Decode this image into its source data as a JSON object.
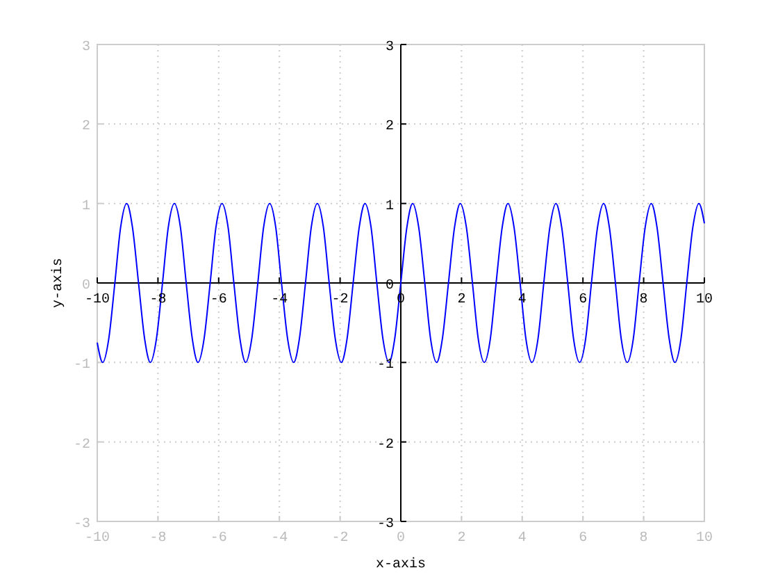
{
  "chart_data": {
    "type": "line",
    "xlabel": "x-axis",
    "ylabel": "y-axis",
    "xlim": [
      -10,
      10
    ],
    "ylim": [
      -3,
      3
    ],
    "xticks": [
      -10,
      -8,
      -6,
      -4,
      -2,
      0,
      2,
      4,
      6,
      8,
      10
    ],
    "yticks": [
      -3,
      -2,
      -1,
      0,
      1,
      2,
      3
    ],
    "x2lim": [
      -10,
      10
    ],
    "x2ticks": [
      -10,
      -8,
      -6,
      -4,
      -2,
      0,
      2,
      4,
      6,
      8,
      10
    ],
    "y2lim": [
      -3,
      3
    ],
    "y2ticks": [
      -3,
      -2,
      -1,
      0,
      1,
      2,
      3
    ],
    "grid": true,
    "line_style": "solid",
    "marker": "none",
    "x": [
      -10,
      -9.82,
      -9.62,
      -9.42,
      -9.23,
      -9.03,
      -8.84,
      -8.64,
      -8.44,
      -8.25,
      -8.05,
      -7.85,
      -7.66,
      -7.46,
      -7.26,
      -7.07,
      -6.87,
      -6.68,
      -6.48,
      -6.28,
      -6.09,
      -5.89,
      -5.69,
      -5.5,
      -5.3,
      -5.11,
      -4.91,
      -4.71,
      -4.52,
      -4.32,
      -4.12,
      -3.93,
      -3.73,
      -3.53,
      -3.34,
      -3.14,
      -2.95,
      -2.75,
      -2.55,
      -2.36,
      -2.16,
      -1.96,
      -1.77,
      -1.57,
      -1.37,
      -1.18,
      -0.98,
      -0.79,
      -0.59,
      -0.39,
      -0.2,
      0,
      0.2,
      0.39,
      0.59,
      0.79,
      0.98,
      1.18,
      1.37,
      1.57,
      1.77,
      1.96,
      2.16,
      2.36,
      2.55,
      2.75,
      2.95,
      3.14,
      3.34,
      3.53,
      3.73,
      3.93,
      4.12,
      4.32,
      4.52,
      4.71,
      4.91,
      5.11,
      5.3,
      5.5,
      5.69,
      5.89,
      6.09,
      6.28,
      6.48,
      6.68,
      6.87,
      7.07,
      7.26,
      7.46,
      7.66,
      7.85,
      8.05,
      8.25,
      8.44,
      8.64,
      8.84,
      9.03,
      9.23,
      9.42,
      9.62,
      9.82,
      10
    ],
    "series": [
      {
        "color": "#0000ff",
        "values": [
          -0.75,
          -1,
          -0.7,
          0,
          0.7,
          1,
          0.7,
          0,
          -0.7,
          -1,
          -0.7,
          0,
          0.7,
          1,
          0.7,
          0,
          -0.7,
          -1,
          -0.7,
          0,
          0.7,
          1,
          0.7,
          0,
          -0.7,
          -1,
          -0.7,
          0,
          0.7,
          1,
          0.7,
          0,
          -0.7,
          -1,
          -0.7,
          0,
          0.7,
          1,
          0.7,
          0,
          -0.7,
          -1,
          -0.7,
          0,
          0.7,
          1,
          0.7,
          0,
          -0.7,
          -1,
          -0.7,
          0,
          0.7,
          1,
          0.7,
          0,
          -0.7,
          -1,
          -0.7,
          0,
          0.7,
          1,
          0.7,
          0,
          -0.7,
          -1,
          -0.7,
          0,
          0.7,
          1,
          0.7,
          0,
          -0.7,
          -1,
          -0.7,
          0,
          0.7,
          1,
          0.7,
          0,
          -0.7,
          -1,
          -0.7,
          0,
          0.7,
          1,
          0.7,
          0,
          -0.7,
          -1,
          -0.7,
          0,
          0.7,
          1,
          0.7,
          0,
          -0.7,
          -1,
          -0.7,
          0,
          0.7,
          1,
          0.75
        ]
      }
    ]
  }
}
